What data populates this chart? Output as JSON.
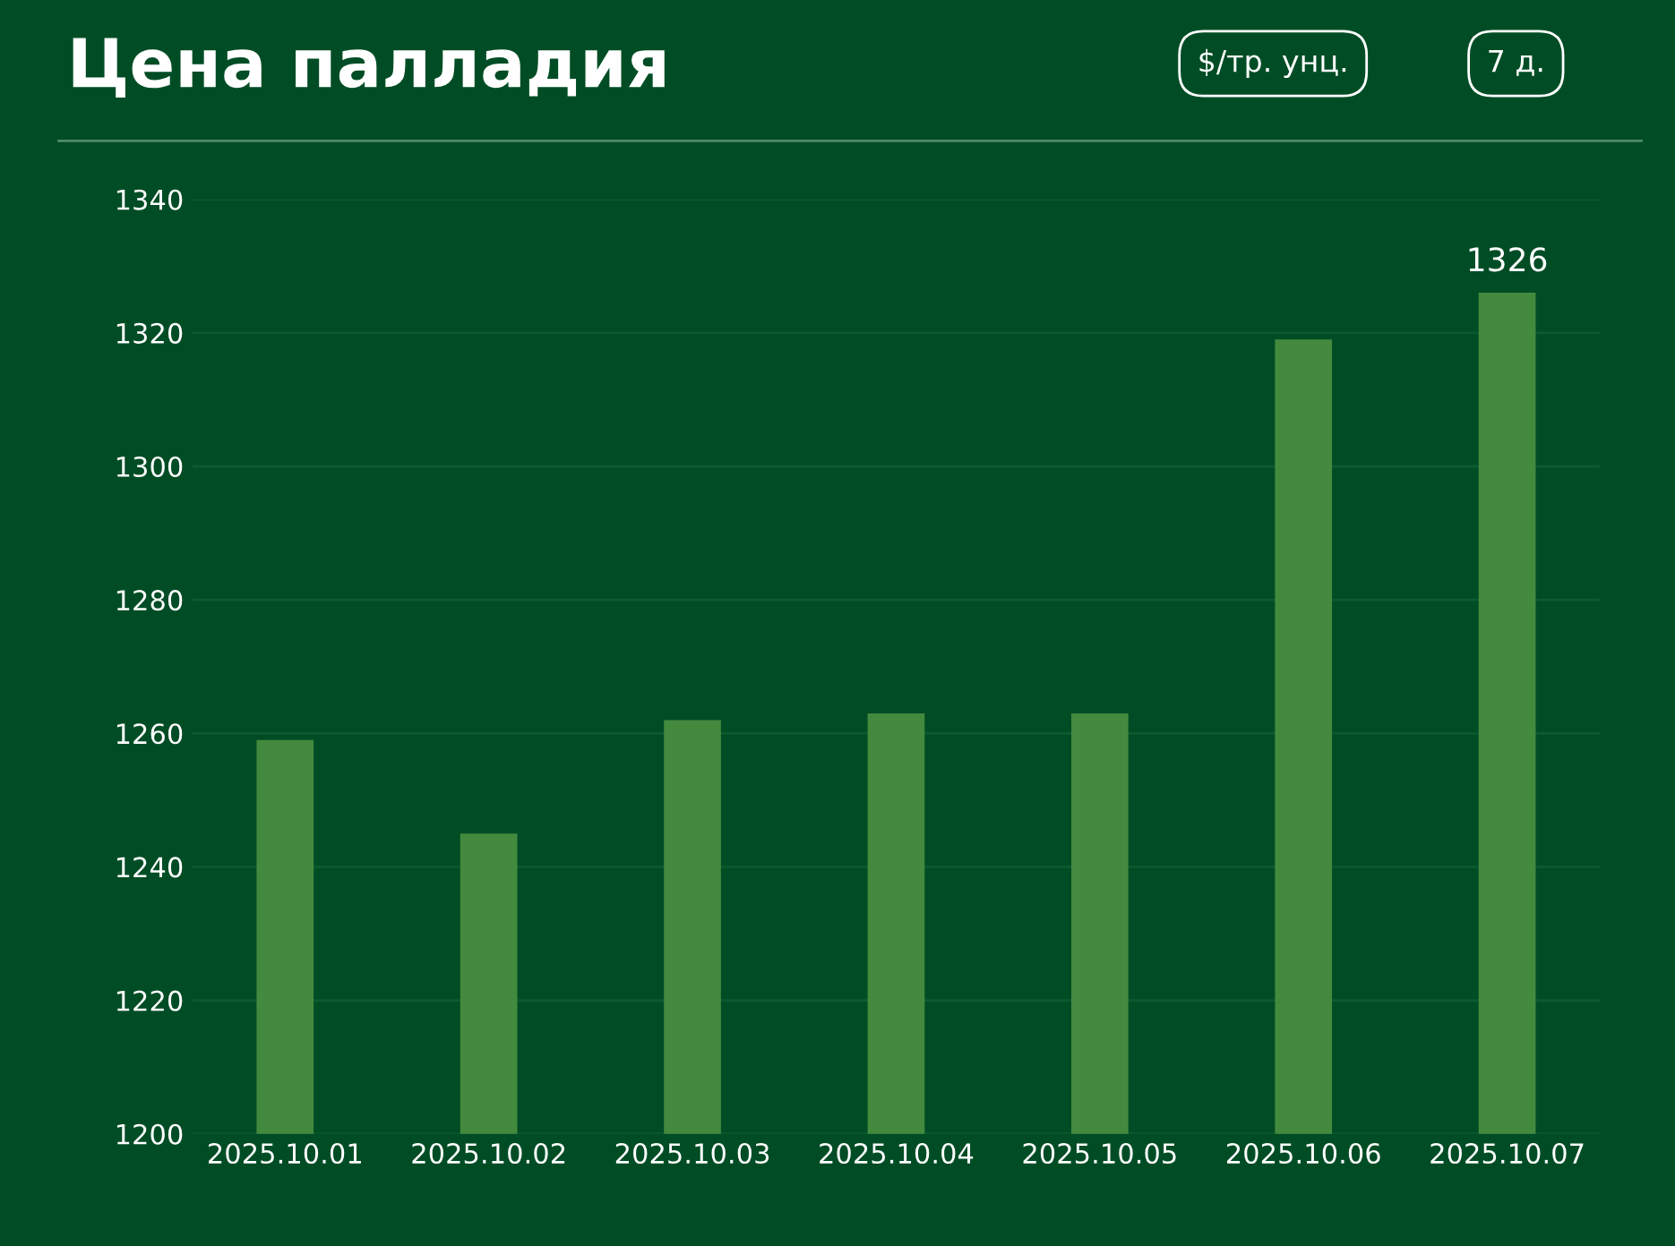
{
  "chart_data": {
    "type": "bar",
    "title": "Цена палладия",
    "annotations": [
      "$/тр. унц.",
      "7 д."
    ],
    "categories": [
      "2025.10.01",
      "2025.10.02",
      "2025.10.03",
      "2025.10.04",
      "2025.10.05",
      "2025.10.06",
      "2025.10.07"
    ],
    "values": [
      1259,
      1245,
      1262,
      1263,
      1263,
      1319,
      1326
    ],
    "value_labels": [
      null,
      null,
      null,
      null,
      null,
      null,
      "1326"
    ],
    "color": "#438a3f",
    "ylim": [
      1200,
      1340
    ],
    "yticks": [
      1200,
      1220,
      1240,
      1260,
      1280,
      1300,
      1320,
      1340
    ],
    "grid": "y",
    "legend": false
  }
}
